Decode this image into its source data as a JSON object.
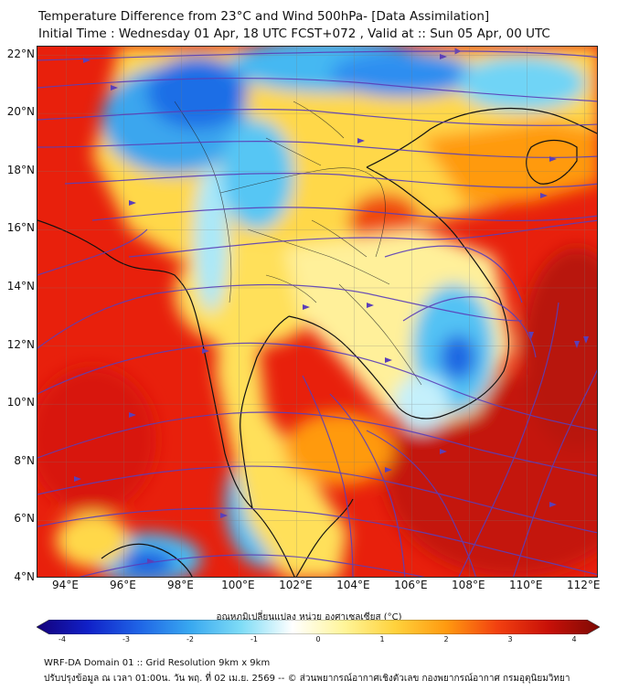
{
  "title_line1": "Temperature Difference from 23°C and Wind 500hPa- [Data Assimilation]",
  "title_line2": "Initial Time : Wednesday 01 Apr, 18 UTC FCST+072 , Valid at ::  Sun 05 Apr, 00 UTC",
  "map": {
    "lat_labels": [
      "22°N",
      "20°N",
      "18°N",
      "16°N",
      "14°N",
      "12°N",
      "10°N",
      "8°N",
      "6°N",
      "4°N"
    ],
    "lon_labels": [
      "94°E",
      "96°E",
      "98°E",
      "100°E",
      "102°E",
      "104°E",
      "106°E",
      "108°E",
      "110°E",
      "112°E"
    ],
    "extent": {
      "lon_min": 93,
      "lon_max": 112.5,
      "lat_min": 4,
      "lat_max": 22.3
    },
    "field": "temperature difference",
    "streamline_color": "#5b3fb8",
    "coastline_color": "#111111"
  },
  "colorbar": {
    "title": "อุณหภูมิเปลี่ยนแปลง หน่วย องศาเซลเซียส (°C)",
    "ticks": [
      "-4",
      "-3",
      "-2",
      "-1",
      "0",
      "1",
      "2",
      "3",
      "4"
    ],
    "colors": [
      "#14007a",
      "#1020c8",
      "#1f64e6",
      "#38a8f0",
      "#7fdcf6",
      "#ffffff",
      "#fff59a",
      "#ffd23c",
      "#ff9a10",
      "#f24010",
      "#c81008",
      "#7d0a04"
    ]
  },
  "footer": {
    "line1": "WRF-DA Domain 01 :: Grid Resolution 9km x 9km",
    "line2": "ปรับปรุงข้อมูล ณ เวลา 01:00น. วัน พฤ. ที่ 02 เม.ย. 2569 -- © ส่วนพยากรณ์อากาศเชิงตัวเลข กองพยากรณ์อากาศ กรมอุตุนิยมวิทยา"
  }
}
